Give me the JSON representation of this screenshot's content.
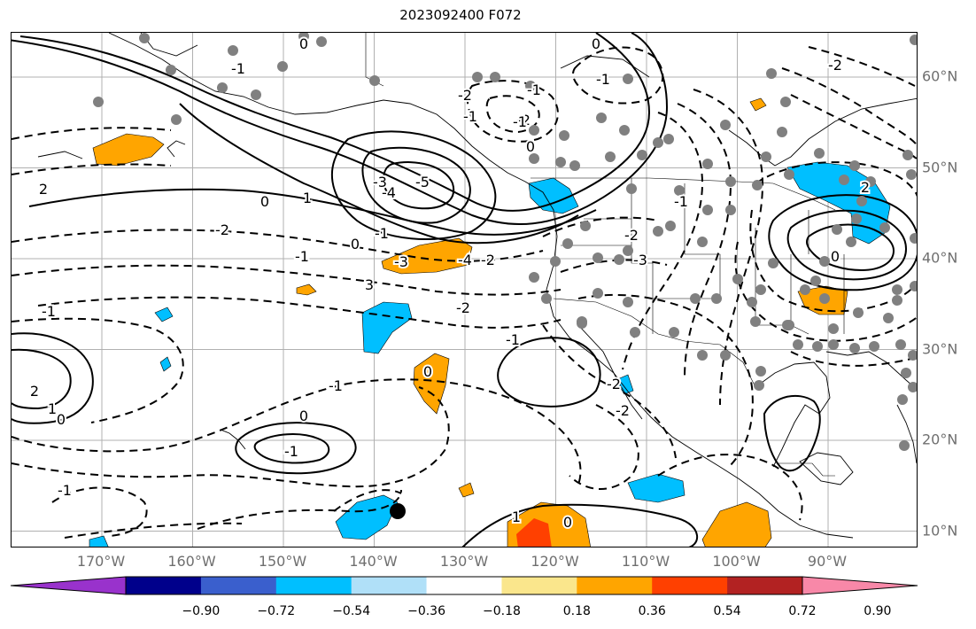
{
  "title": "2023092400 F072",
  "lon_labels": [
    {
      "text": "170°W",
      "lon": -170
    },
    {
      "text": "160°W",
      "lon": -160
    },
    {
      "text": "150°W",
      "lon": -150
    },
    {
      "text": "140°W",
      "lon": -140
    },
    {
      "text": "130°W",
      "lon": -130
    },
    {
      "text": "120°W",
      "lon": -120
    },
    {
      "text": "110°W",
      "lon": -110
    },
    {
      "text": "100°W",
      "lon": -100
    },
    {
      "text": "90°W",
      "lon": -90
    }
  ],
  "lat_labels": [
    {
      "text": "60°N",
      "lat": 60
    },
    {
      "text": "50°N",
      "lat": 50
    },
    {
      "text": "40°N",
      "lat": 40
    },
    {
      "text": "30°N",
      "lat": 30
    },
    {
      "text": "20°N",
      "lat": 20
    },
    {
      "text": "10°N",
      "lat": 10
    }
  ],
  "colorbar": {
    "colors": [
      "#9932cc",
      "#00008b",
      "#3a5fcd",
      "#00bfff",
      "#b0e0f8",
      "#ffffff",
      "#fae68c",
      "#ffa500",
      "#ff4000",
      "#b22222",
      "#f888a8"
    ],
    "tick_labels": [
      "−0.90",
      "−0.72",
      "−0.54",
      "−0.36",
      "−0.18",
      "0.18",
      "0.36",
      "0.54",
      "0.72",
      "0.90"
    ]
  },
  "contour_labels": [
    "2",
    "0",
    "1",
    "-3",
    "-4",
    "-5",
    "-1",
    "-2",
    "0",
    "-1",
    "3",
    "-3",
    "-4",
    "-2",
    "-1",
    "0",
    "-1",
    "-2",
    "-1",
    "-2",
    "0",
    "-1",
    "0",
    "-1",
    "2",
    "1",
    "0",
    "0",
    "-1",
    "-1",
    "-1",
    "0",
    "-1",
    "1",
    "0",
    "-2",
    "-2",
    "-2",
    "-3",
    "-1",
    "-2",
    "2",
    "0",
    "-2",
    "-1"
  ],
  "legend": {
    "markers": "gray station dots"
  }
}
